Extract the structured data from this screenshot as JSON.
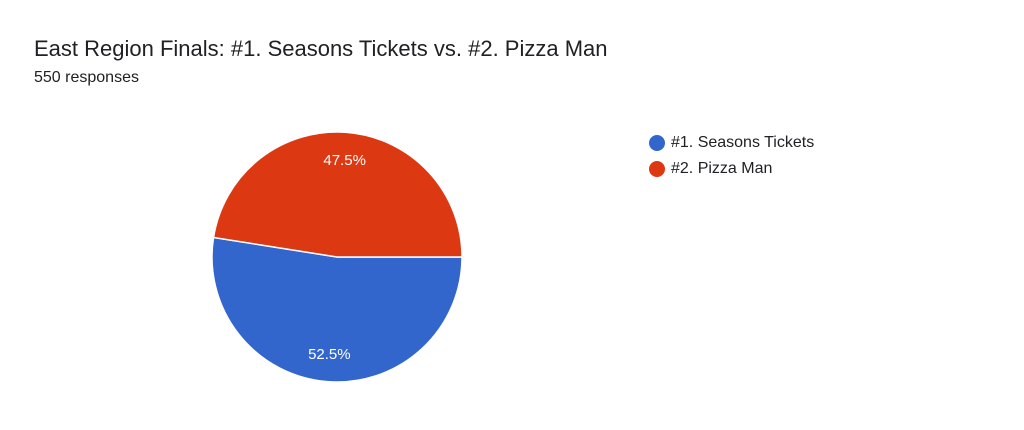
{
  "header": {
    "title": "East Region Finals: #1. Seasons Tickets vs. #2. Pizza Man",
    "responses": "550 responses"
  },
  "chart_data": {
    "type": "pie",
    "title": "East Region Finals: #1. Seasons Tickets vs. #2. Pizza Man",
    "slices": [
      {
        "label": "#1. Seasons Tickets",
        "value": 52.5,
        "display": "52.5%",
        "color": "#3366cc"
      },
      {
        "label": "#2. Pizza Man",
        "value": 47.5,
        "display": "47.5%",
        "color": "#dc3912"
      }
    ],
    "legend_position": "right"
  }
}
